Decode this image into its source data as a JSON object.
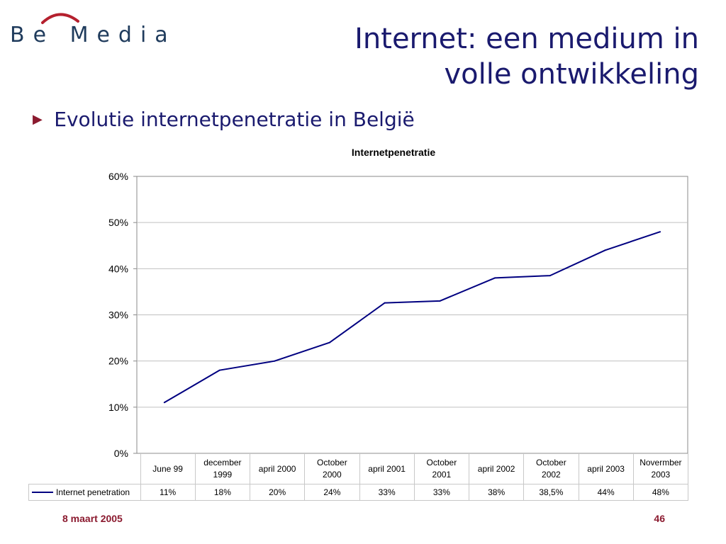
{
  "logo": {
    "text": "Be Media"
  },
  "slide": {
    "title_line1": "Internet: een medium in",
    "title_line2": "volle ontwikkeling",
    "bullet": "Evolutie internetpenetratie in België",
    "footer_date": "8 maart 2005",
    "page_number": "46"
  },
  "colors": {
    "title": "#1a1a6e",
    "accent": "#8b1a2f",
    "series_line": "#000080",
    "gridline": "#c0c0c0"
  },
  "chart_data": {
    "type": "line",
    "title": "Internetpenetratie",
    "categories": [
      "June 99",
      "december 1999",
      "april 2000",
      "October 2000",
      "april 2001",
      "October 2001",
      "april 2002",
      "October 2002",
      "april 2003",
      "Novermber 2003"
    ],
    "series": [
      {
        "name": "Internet penetration",
        "values": [
          11,
          18,
          20,
          24,
          32.6,
          33,
          38,
          38.5,
          44,
          48
        ],
        "labels": [
          "11%",
          "18%",
          "20%",
          "24%",
          "33%",
          "33%",
          "38%",
          "38,5%",
          "44%",
          "48%"
        ]
      }
    ],
    "yticks": [
      "0%",
      "10%",
      "20%",
      "30%",
      "40%",
      "50%",
      "60%"
    ],
    "ylim": [
      0,
      60
    ],
    "grid": true,
    "legend": "data-table"
  }
}
